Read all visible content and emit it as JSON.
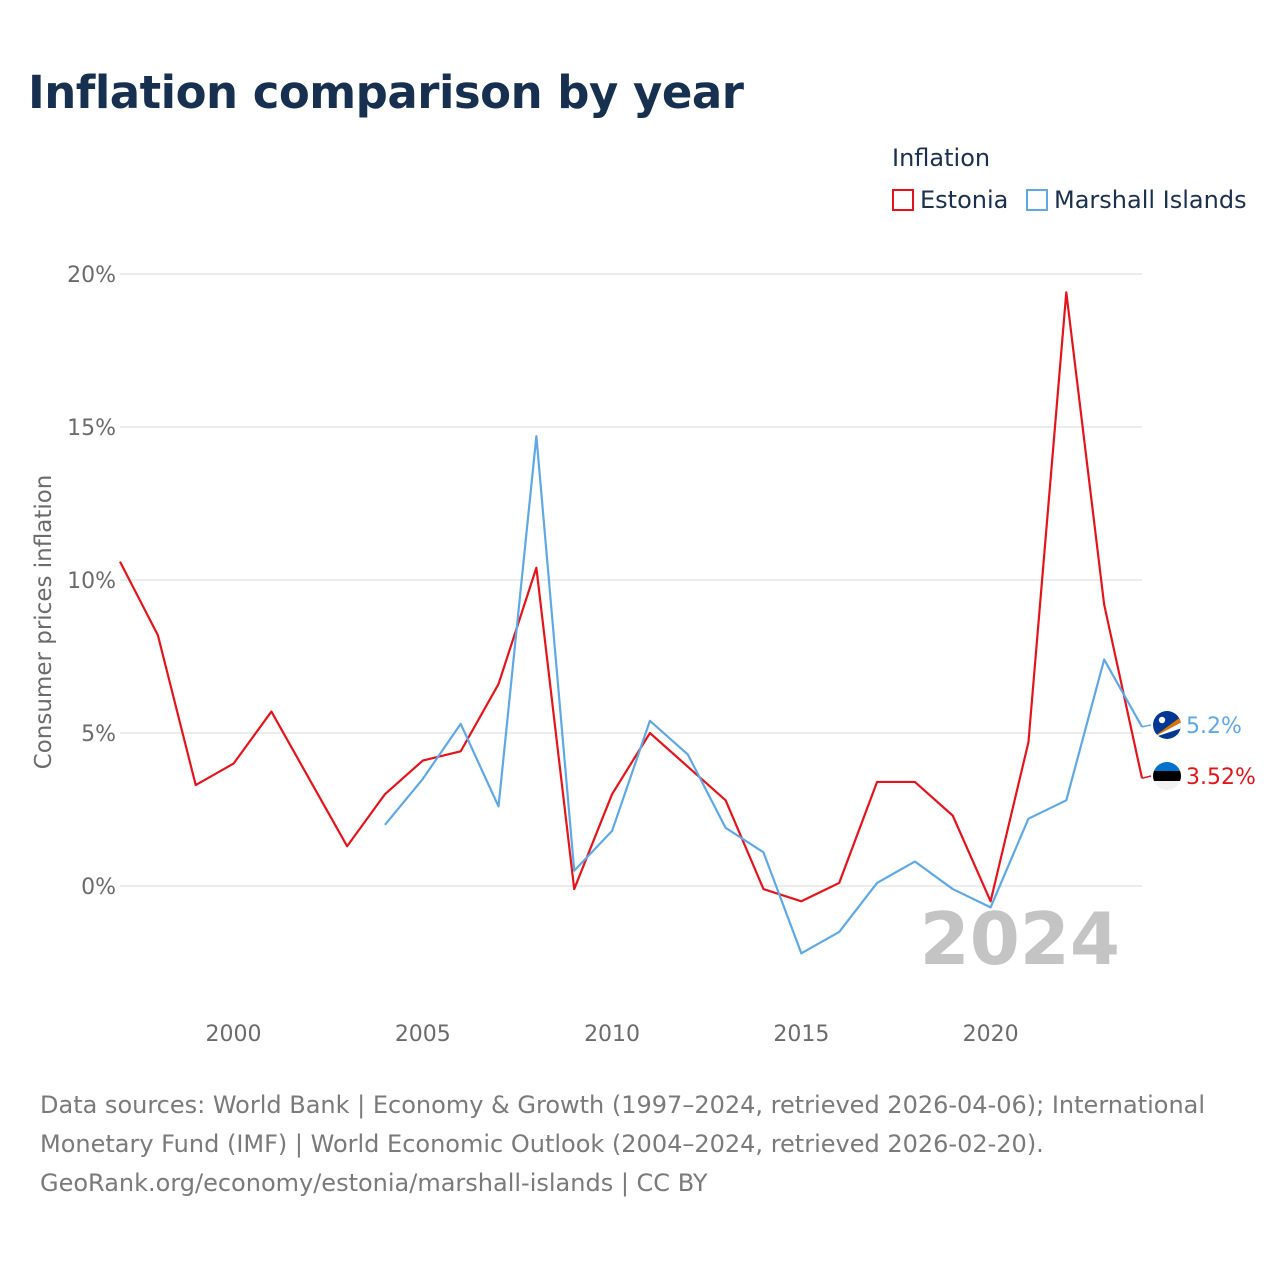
{
  "title": "Inflation comparison by year",
  "legend": {
    "title": "Inflation",
    "items": [
      {
        "label": "Estonia",
        "color": "#e5141b"
      },
      {
        "label": "Marshall Islands",
        "color": "#5ea8e6"
      }
    ]
  },
  "footer": {
    "line1": "Data sources: World Bank | Economy & Growth (1997–2024, retrieved 2026-04-06); International",
    "line2": "Monetary Fund (IMF) | World Economic Outlook (2004–2024, retrieved 2026-02-20).",
    "line3": "GeoRank.org/economy/estonia/marshall-islands | CC BY"
  },
  "chart_data": {
    "type": "line",
    "title": "Inflation comparison by year",
    "xlabel": "",
    "ylabel": "Consumer prices inflation",
    "xlim": [
      1997,
      2024
    ],
    "ylim": [
      -3.8,
      20
    ],
    "y_ticks": [
      0,
      5,
      10,
      15,
      20
    ],
    "y_tick_labels": [
      "0%",
      "5%",
      "10%",
      "15%",
      "20%"
    ],
    "x_ticks": [
      2000,
      2005,
      2010,
      2015,
      2020
    ],
    "x_tick_labels": [
      "2000",
      "2005",
      "2010",
      "2015",
      "2020"
    ],
    "grid": true,
    "legend_position": "top-right",
    "highlight_year": "2024",
    "series": [
      {
        "name": "Estonia",
        "color": "#e5141b",
        "end_label": "3.52%",
        "flag": "estonia-flag-icon",
        "points": [
          [
            1997,
            10.6
          ],
          [
            1998,
            8.2
          ],
          [
            1999,
            3.3
          ],
          [
            2000,
            4.0
          ],
          [
            2001,
            5.7
          ],
          [
            2002,
            3.5
          ],
          [
            2003,
            1.3
          ],
          [
            2004,
            3.0
          ],
          [
            2005,
            4.1
          ],
          [
            2006,
            4.4
          ],
          [
            2007,
            6.6
          ],
          [
            2008,
            10.4
          ],
          [
            2009,
            -0.1
          ],
          [
            2010,
            3.0
          ],
          [
            2011,
            5.0
          ],
          [
            2012,
            3.9
          ],
          [
            2013,
            2.8
          ],
          [
            2014,
            -0.1
          ],
          [
            2015,
            -0.5
          ],
          [
            2016,
            0.1
          ],
          [
            2017,
            3.4
          ],
          [
            2018,
            3.4
          ],
          [
            2019,
            2.3
          ],
          [
            2020,
            -0.5
          ],
          [
            2021,
            4.7
          ],
          [
            2022,
            19.4
          ],
          [
            2023,
            9.2
          ],
          [
            2024,
            3.52
          ]
        ]
      },
      {
        "name": "Marshall Islands",
        "color": "#5ea8e6",
        "end_label": "5.2%",
        "flag": "marshall-islands-flag-icon",
        "points": [
          [
            2004,
            2.0
          ],
          [
            2005,
            3.5
          ],
          [
            2006,
            5.3
          ],
          [
            2007,
            2.6
          ],
          [
            2008,
            14.7
          ],
          [
            2009,
            0.5
          ],
          [
            2010,
            1.8
          ],
          [
            2011,
            5.4
          ],
          [
            2012,
            4.3
          ],
          [
            2013,
            1.9
          ],
          [
            2014,
            1.1
          ],
          [
            2015,
            -2.2
          ],
          [
            2016,
            -1.5
          ],
          [
            2017,
            0.1
          ],
          [
            2018,
            0.8
          ],
          [
            2019,
            -0.1
          ],
          [
            2020,
            -0.7
          ],
          [
            2021,
            2.2
          ],
          [
            2022,
            2.8
          ],
          [
            2023,
            7.4
          ],
          [
            2024,
            5.2
          ]
        ]
      }
    ]
  }
}
